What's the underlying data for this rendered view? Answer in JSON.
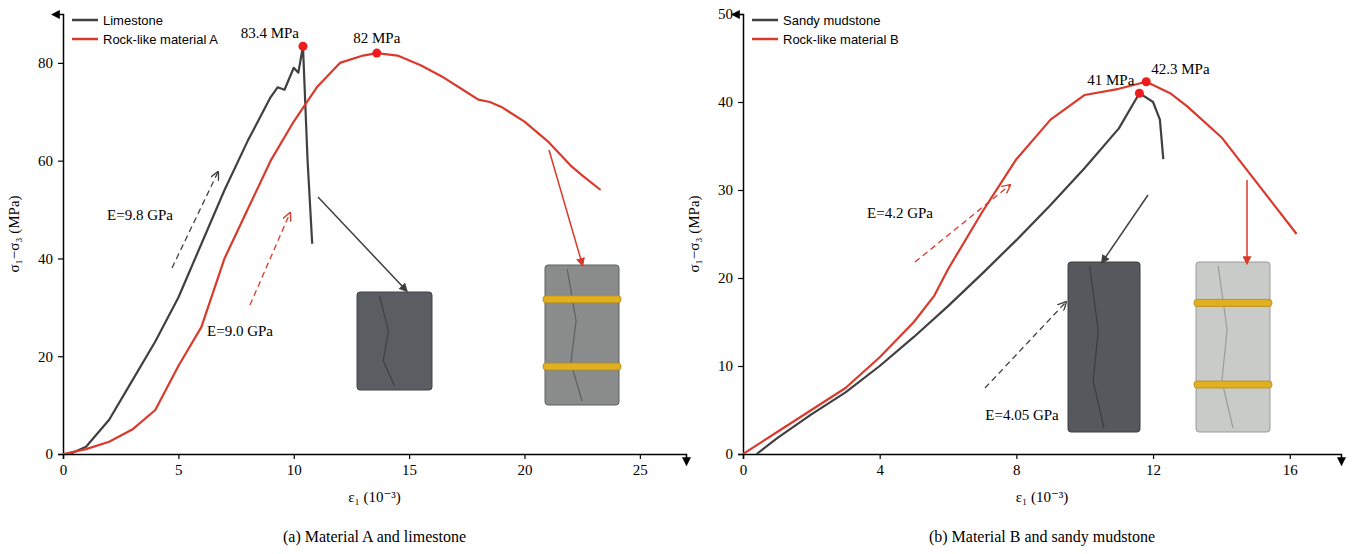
{
  "chart_data": [
    {
      "type": "line",
      "title": "(a) Material A and limestone",
      "x_label": "ε₁ (10⁻³)",
      "y_label": "σ₁−σ₃ (MPa)",
      "xlim": [
        0,
        27
      ],
      "xticks": [
        0,
        5,
        10,
        15,
        20,
        25
      ],
      "ylim": [
        0,
        90
      ],
      "yticks": [
        0,
        20,
        40,
        60,
        80
      ],
      "legend": "upper left",
      "series": [
        {
          "name": "Limestone",
          "color": "#404040",
          "x": [
            0.3,
            1,
            2,
            3,
            4,
            5,
            6,
            7,
            8,
            9,
            9.3,
            9.6,
            10,
            10.2,
            10.4,
            10.6,
            10.8
          ],
          "values": [
            0,
            1.5,
            7,
            15,
            23,
            32,
            43,
            54,
            64,
            73,
            75,
            74.5,
            79,
            78,
            83.4,
            60,
            43
          ],
          "peak": {
            "x": 10.4,
            "y": 83.4,
            "label": "83.4 MPa"
          },
          "annotation": "E=9.8 GPa"
        },
        {
          "name": "Rock-like material A",
          "color": "#d93a2b",
          "x": [
            0,
            1,
            2,
            3,
            4,
            5,
            6,
            7,
            8,
            9,
            10,
            11,
            12,
            13,
            13.6,
            14.5,
            15.5,
            16.5,
            17.5,
            18,
            18.5,
            19,
            20,
            21,
            22,
            22.5,
            23.3
          ],
          "values": [
            0,
            1,
            2.5,
            5,
            9,
            18,
            26,
            40,
            50,
            60,
            68,
            75,
            80,
            81.5,
            82,
            81.5,
            79.5,
            77,
            74,
            72.5,
            72,
            71,
            68,
            64,
            59,
            57,
            54
          ],
          "peak": {
            "x": 13.6,
            "y": 82,
            "label": "82 MPa"
          },
          "annotation": "E=9.0 GPa"
        }
      ]
    },
    {
      "type": "line",
      "title": "(b) Material B and sandy mudstone",
      "x_label": "ε₁ (10⁻³)",
      "y_label": "σ₁−σ₃ (MPa)",
      "xlim": [
        0,
        17.5
      ],
      "xticks": [
        0,
        4,
        8,
        12,
        16
      ],
      "ylim": [
        0,
        50
      ],
      "yticks": [
        0,
        10,
        20,
        30,
        40,
        50
      ],
      "legend": "upper left",
      "series": [
        {
          "name": "Sandy mudstone",
          "color": "#404040",
          "x": [
            0.4,
            1,
            2,
            3,
            4,
            5,
            6,
            7,
            8,
            9,
            10,
            11,
            11.6,
            12,
            12.2,
            12.3
          ],
          "values": [
            0,
            1.8,
            4.5,
            7,
            10,
            13.3,
            16.8,
            20.5,
            24.3,
            28.3,
            32.5,
            37,
            41,
            40,
            38,
            33.5
          ],
          "peak": {
            "x": 11.6,
            "y": 41,
            "label": "41 MPa"
          },
          "annotation": "E=4.05 GPa"
        },
        {
          "name": "Rock-like material B",
          "color": "#d93a2b",
          "x": [
            0,
            1,
            2,
            3,
            4,
            5,
            5.6,
            6,
            7,
            8,
            9,
            10,
            11,
            11.8,
            12.5,
            13,
            14,
            15,
            15.5,
            16.2
          ],
          "values": [
            0,
            2.5,
            5,
            7.5,
            11,
            15,
            18,
            21,
            27.5,
            33.5,
            38,
            40.8,
            41.5,
            42.3,
            41,
            39.5,
            36,
            31,
            28.5,
            25
          ],
          "peak": {
            "x": 11.8,
            "y": 42.3,
            "label": "42.3 MPa"
          },
          "annotation": "E=4.2 GPa"
        }
      ]
    }
  ]
}
